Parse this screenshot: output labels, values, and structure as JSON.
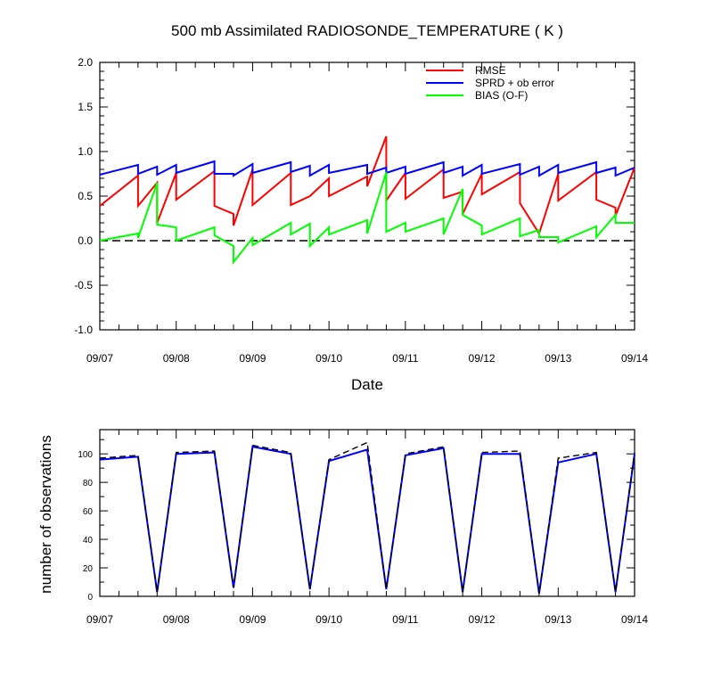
{
  "chart_data": [
    {
      "type": "line",
      "title": "500 mb Assimilated RADIOSONDE_TEMPERATURE ( K )",
      "xlabel": "Date",
      "ylabel": "",
      "x_unit": "days since 09/07 00Z",
      "xlim": [
        0,
        7
      ],
      "ylim": [
        -1.0,
        2.0
      ],
      "x_ticks": [
        0,
        1,
        2,
        3,
        4,
        5,
        6,
        7
      ],
      "x_tick_labels": [
        "09/07",
        "09/08",
        "09/09",
        "09/10",
        "09/11",
        "09/12",
        "09/13",
        "09/14"
      ],
      "y_ticks": [
        -1.0,
        -0.5,
        0.0,
        0.5,
        1.0,
        1.5,
        2.0
      ],
      "y_tick_labels": [
        "-1.0",
        "-0.5",
        "0.0",
        "0.5",
        "1.0",
        "1.5",
        "2.0"
      ],
      "legend": "top-right",
      "reference_line": {
        "y": 0.0,
        "style": "dashed",
        "color": "#000000"
      },
      "series": [
        {
          "name": "RMSE",
          "color": "#ff0000",
          "points": [
            [
              0.0,
              0.39
            ],
            [
              0.5,
              0.73
            ],
            [
              0.5,
              0.39
            ],
            [
              0.75,
              0.65
            ],
            [
              0.75,
              0.2
            ],
            [
              1.0,
              0.76
            ],
            [
              1.0,
              0.46
            ],
            [
              1.5,
              0.78
            ],
            [
              1.5,
              0.39
            ],
            [
              1.75,
              0.3
            ],
            [
              1.75,
              0.17
            ],
            [
              2.0,
              0.8
            ],
            [
              2.0,
              0.4
            ],
            [
              2.5,
              0.76
            ],
            [
              2.5,
              0.4
            ],
            [
              2.75,
              0.5
            ],
            [
              3.0,
              0.7
            ],
            [
              3.0,
              0.5
            ],
            [
              3.5,
              0.72
            ],
            [
              3.5,
              0.61
            ],
            [
              3.75,
              1.17
            ],
            [
              3.75,
              0.45
            ],
            [
              4.0,
              0.76
            ],
            [
              4.0,
              0.47
            ],
            [
              4.5,
              0.8
            ],
            [
              4.5,
              0.48
            ],
            [
              4.75,
              0.55
            ],
            [
              4.75,
              0.3
            ],
            [
              5.0,
              0.75
            ],
            [
              5.0,
              0.52
            ],
            [
              5.5,
              0.77
            ],
            [
              5.5,
              0.42
            ],
            [
              5.75,
              0.08
            ],
            [
              6.0,
              0.75
            ],
            [
              6.0,
              0.45
            ],
            [
              6.5,
              0.77
            ],
            [
              6.5,
              0.46
            ],
            [
              6.75,
              0.37
            ],
            [
              6.75,
              0.28
            ],
            [
              7.0,
              0.82
            ]
          ]
        },
        {
          "name": "SPRD + ob error",
          "color": "#0000ff",
          "points": [
            [
              0.0,
              0.74
            ],
            [
              0.5,
              0.85
            ],
            [
              0.5,
              0.75
            ],
            [
              0.75,
              0.83
            ],
            [
              0.75,
              0.74
            ],
            [
              1.0,
              0.85
            ],
            [
              1.0,
              0.76
            ],
            [
              1.5,
              0.89
            ],
            [
              1.5,
              0.75
            ],
            [
              1.75,
              0.75
            ],
            [
              1.75,
              0.73
            ],
            [
              2.0,
              0.86
            ],
            [
              2.0,
              0.76
            ],
            [
              2.5,
              0.88
            ],
            [
              2.5,
              0.77
            ],
            [
              2.75,
              0.84
            ],
            [
              2.75,
              0.73
            ],
            [
              3.0,
              0.85
            ],
            [
              3.0,
              0.76
            ],
            [
              3.5,
              0.85
            ],
            [
              3.5,
              0.75
            ],
            [
              3.75,
              0.82
            ],
            [
              3.75,
              0.76
            ],
            [
              4.0,
              0.83
            ],
            [
              4.0,
              0.75
            ],
            [
              4.5,
              0.88
            ],
            [
              4.5,
              0.76
            ],
            [
              4.75,
              0.83
            ],
            [
              4.75,
              0.73
            ],
            [
              5.0,
              0.85
            ],
            [
              5.0,
              0.75
            ],
            [
              5.5,
              0.86
            ],
            [
              5.5,
              0.74
            ],
            [
              5.75,
              0.83
            ],
            [
              5.75,
              0.73
            ],
            [
              6.0,
              0.85
            ],
            [
              6.0,
              0.76
            ],
            [
              6.5,
              0.88
            ],
            [
              6.5,
              0.76
            ],
            [
              6.75,
              0.82
            ],
            [
              6.75,
              0.73
            ],
            [
              7.0,
              0.82
            ]
          ]
        },
        {
          "name": "BIAS (O-F)",
          "color": "#00ff00",
          "points": [
            [
              0.0,
              0.0
            ],
            [
              0.5,
              0.08
            ],
            [
              0.5,
              0.03
            ],
            [
              0.75,
              0.65
            ],
            [
              0.75,
              0.18
            ],
            [
              1.0,
              0.15
            ],
            [
              1.0,
              0.0
            ],
            [
              1.5,
              0.15
            ],
            [
              1.5,
              0.06
            ],
            [
              1.75,
              -0.06
            ],
            [
              1.75,
              -0.24
            ],
            [
              2.0,
              0.03
            ],
            [
              2.0,
              -0.05
            ],
            [
              2.5,
              0.2
            ],
            [
              2.5,
              0.07
            ],
            [
              2.75,
              0.19
            ],
            [
              2.75,
              -0.06
            ],
            [
              3.0,
              0.15
            ],
            [
              3.0,
              0.07
            ],
            [
              3.5,
              0.23
            ],
            [
              3.5,
              0.08
            ],
            [
              3.75,
              0.77
            ],
            [
              3.75,
              0.1
            ],
            [
              4.0,
              0.2
            ],
            [
              4.0,
              0.1
            ],
            [
              4.5,
              0.25
            ],
            [
              4.5,
              0.07
            ],
            [
              4.75,
              0.58
            ],
            [
              4.75,
              0.29
            ],
            [
              5.0,
              0.17
            ],
            [
              5.0,
              0.07
            ],
            [
              5.5,
              0.25
            ],
            [
              5.5,
              0.05
            ],
            [
              5.75,
              0.12
            ],
            [
              5.75,
              0.04
            ],
            [
              6.0,
              0.04
            ],
            [
              6.0,
              -0.02
            ],
            [
              6.5,
              0.16
            ],
            [
              6.5,
              0.04
            ],
            [
              6.75,
              0.29
            ],
            [
              6.75,
              0.2
            ],
            [
              7.0,
              0.2
            ]
          ]
        }
      ]
    },
    {
      "type": "line",
      "title": "",
      "xlabel": "",
      "ylabel": "number of observations",
      "xlim": [
        0,
        7
      ],
      "ylim": [
        0,
        117
      ],
      "x_ticks": [
        0,
        1,
        2,
        3,
        4,
        5,
        6,
        7
      ],
      "x_tick_labels": [
        "09/07",
        "09/08",
        "09/09",
        "09/10",
        "09/11",
        "09/12",
        "09/13",
        "09/14"
      ],
      "y_ticks": [
        0,
        20,
        40,
        60,
        80,
        100
      ],
      "y_tick_labels": [
        "0",
        "20",
        "40",
        "60",
        "80",
        "100"
      ],
      "series": [
        {
          "color": "#0000ff",
          "style": "solid",
          "points": [
            [
              0.0,
              96
            ],
            [
              0.5,
              98
            ],
            [
              0.75,
              3
            ],
            [
              1.0,
              100
            ],
            [
              1.5,
              101
            ],
            [
              1.75,
              6
            ],
            [
              2.0,
              105
            ],
            [
              2.5,
              100
            ],
            [
              2.75,
              5
            ],
            [
              3.0,
              95
            ],
            [
              3.5,
              103
            ],
            [
              3.75,
              5
            ],
            [
              4.0,
              99
            ],
            [
              4.5,
              104
            ],
            [
              4.75,
              3
            ],
            [
              5.0,
              100
            ],
            [
              5.5,
              100
            ],
            [
              5.75,
              2
            ],
            [
              6.0,
              94
            ],
            [
              6.5,
              100
            ],
            [
              6.75,
              3
            ],
            [
              7.0,
              100
            ]
          ]
        },
        {
          "color": "#000000",
          "style": "dashed",
          "points": [
            [
              0.0,
              97
            ],
            [
              0.5,
              99
            ],
            [
              0.75,
              3
            ],
            [
              1.0,
              101
            ],
            [
              1.5,
              102
            ],
            [
              1.75,
              6
            ],
            [
              2.0,
              106
            ],
            [
              2.5,
              101
            ],
            [
              2.75,
              5
            ],
            [
              3.0,
              96
            ],
            [
              3.5,
              108
            ],
            [
              3.75,
              5
            ],
            [
              4.0,
              100
            ],
            [
              4.5,
              105
            ],
            [
              4.75,
              3
            ],
            [
              5.0,
              101
            ],
            [
              5.5,
              102
            ],
            [
              5.75,
              2
            ],
            [
              6.0,
              97
            ],
            [
              6.5,
              101
            ],
            [
              6.75,
              3
            ],
            [
              7.0,
              101
            ]
          ]
        }
      ]
    }
  ]
}
